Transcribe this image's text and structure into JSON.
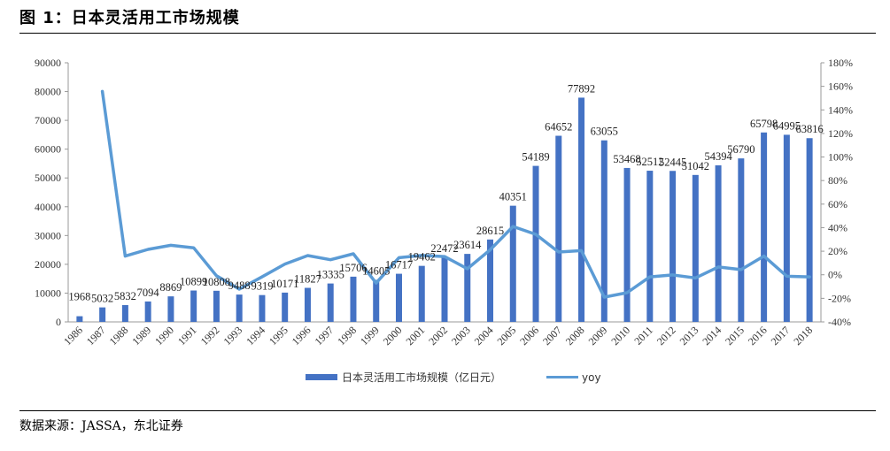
{
  "figure": {
    "title": "图 1：日本灵活用工市场规模",
    "source": "数据来源：JASSA，东北证券"
  },
  "colors": {
    "bar": "#4472C4",
    "line": "#5B9BD5"
  },
  "chart_data": {
    "type": "bar",
    "categories": [
      "1986",
      "1987",
      "1988",
      "1989",
      "1990",
      "1991",
      "1992",
      "1993",
      "1994",
      "1995",
      "1996",
      "1997",
      "1998",
      "1999",
      "2000",
      "2001",
      "2002",
      "2003",
      "2004",
      "2005",
      "2006",
      "2007",
      "2008",
      "2009",
      "2010",
      "2011",
      "2012",
      "2013",
      "2014",
      "2015",
      "2016",
      "2017",
      "2018"
    ],
    "series": [
      {
        "name": "日本灵活用工市场规模（亿日元）",
        "type": "bar",
        "axis": "left",
        "values": [
          1968,
          5032,
          5832,
          7094,
          8869,
          10899,
          10808,
          9488,
          9319,
          10171,
          11827,
          13335,
          15706,
          14605,
          16717,
          19462,
          22472,
          23614,
          28615,
          40351,
          54189,
          64652,
          77892,
          63055,
          53468,
          52512,
          52445,
          51042,
          54394,
          56790,
          65798,
          64995,
          63816
        ]
      },
      {
        "name": "yoy",
        "type": "line",
        "axis": "right",
        "values": [
          null,
          155.7,
          15.9,
          21.6,
          25.0,
          22.9,
          -0.8,
          -12.2,
          -1.8,
          9.1,
          16.3,
          12.8,
          17.8,
          -7.0,
          14.5,
          16.4,
          15.5,
          5.1,
          21.2,
          41.0,
          34.3,
          19.3,
          20.5,
          -19.0,
          -15.2,
          -1.8,
          -0.1,
          -2.7,
          6.6,
          4.4,
          15.9,
          -1.2,
          -1.8
        ]
      }
    ],
    "data_labels": [
      "1968",
      "5032",
      "5832",
      "7094",
      "8869",
      "10899",
      "10808",
      "9488",
      "9319",
      "10171",
      "11827",
      "13335",
      "15706",
      "14605",
      "16717",
      "19462",
      "22472",
      "23614",
      "28615",
      "40351",
      "54189",
      "64652",
      "77892",
      "63055",
      "53468",
      "52512",
      "52445",
      "51042",
      "54394",
      "56790",
      "65798",
      "64995",
      "63816"
    ],
    "y_left": {
      "ylim": [
        0,
        90000
      ],
      "ticks": [
        "0",
        "10000",
        "20000",
        "30000",
        "40000",
        "50000",
        "60000",
        "70000",
        "80000",
        "90000"
      ]
    },
    "y_right": {
      "ylim": [
        -40,
        180
      ],
      "ticks": [
        "-40%",
        "-20%",
        "0%",
        "20%",
        "40%",
        "60%",
        "80%",
        "100%",
        "120%",
        "140%",
        "160%",
        "180%"
      ]
    },
    "grid": false,
    "legend_position": "bottom"
  }
}
